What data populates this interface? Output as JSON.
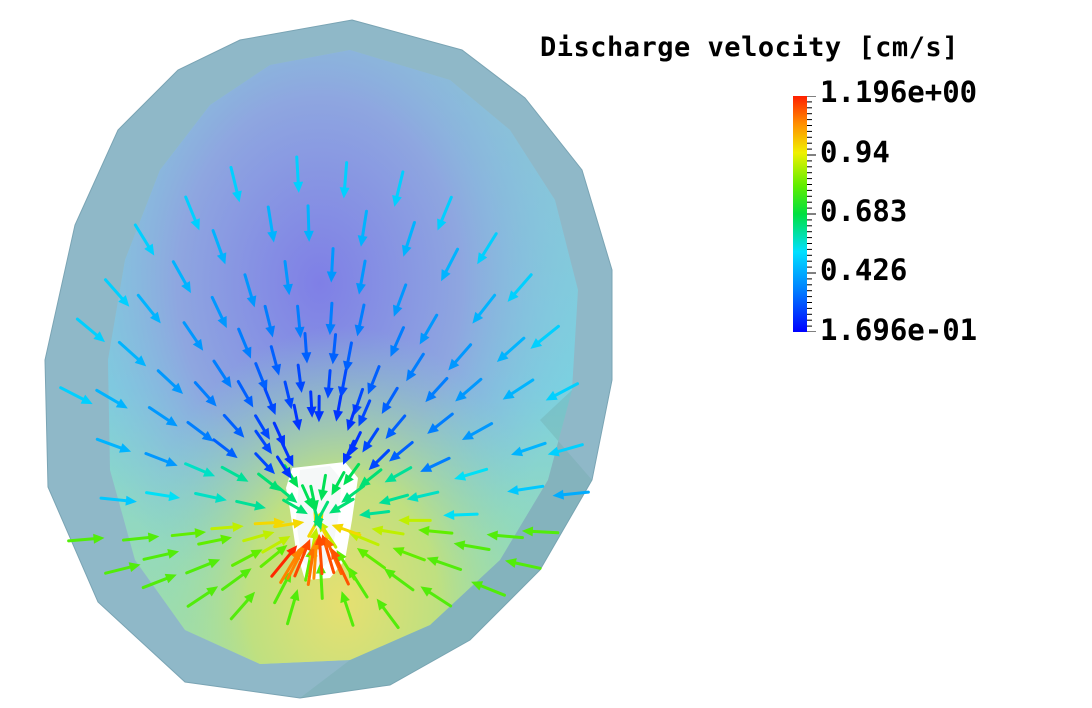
{
  "legend": {
    "title": "Discharge velocity [cm/s]",
    "max_label": "1.196e+00",
    "tick_1": "0.94",
    "tick_2": "0.683",
    "tick_3": "0.426",
    "min_label": "1.696e-01",
    "min_value": 0.1696,
    "max_value": 1.196
  },
  "colormap": [
    "#0000ff",
    "#0080ff",
    "#00e0ff",
    "#00e040",
    "#60ee00",
    "#f0f000",
    "#ff9000",
    "#ff2000"
  ]
}
